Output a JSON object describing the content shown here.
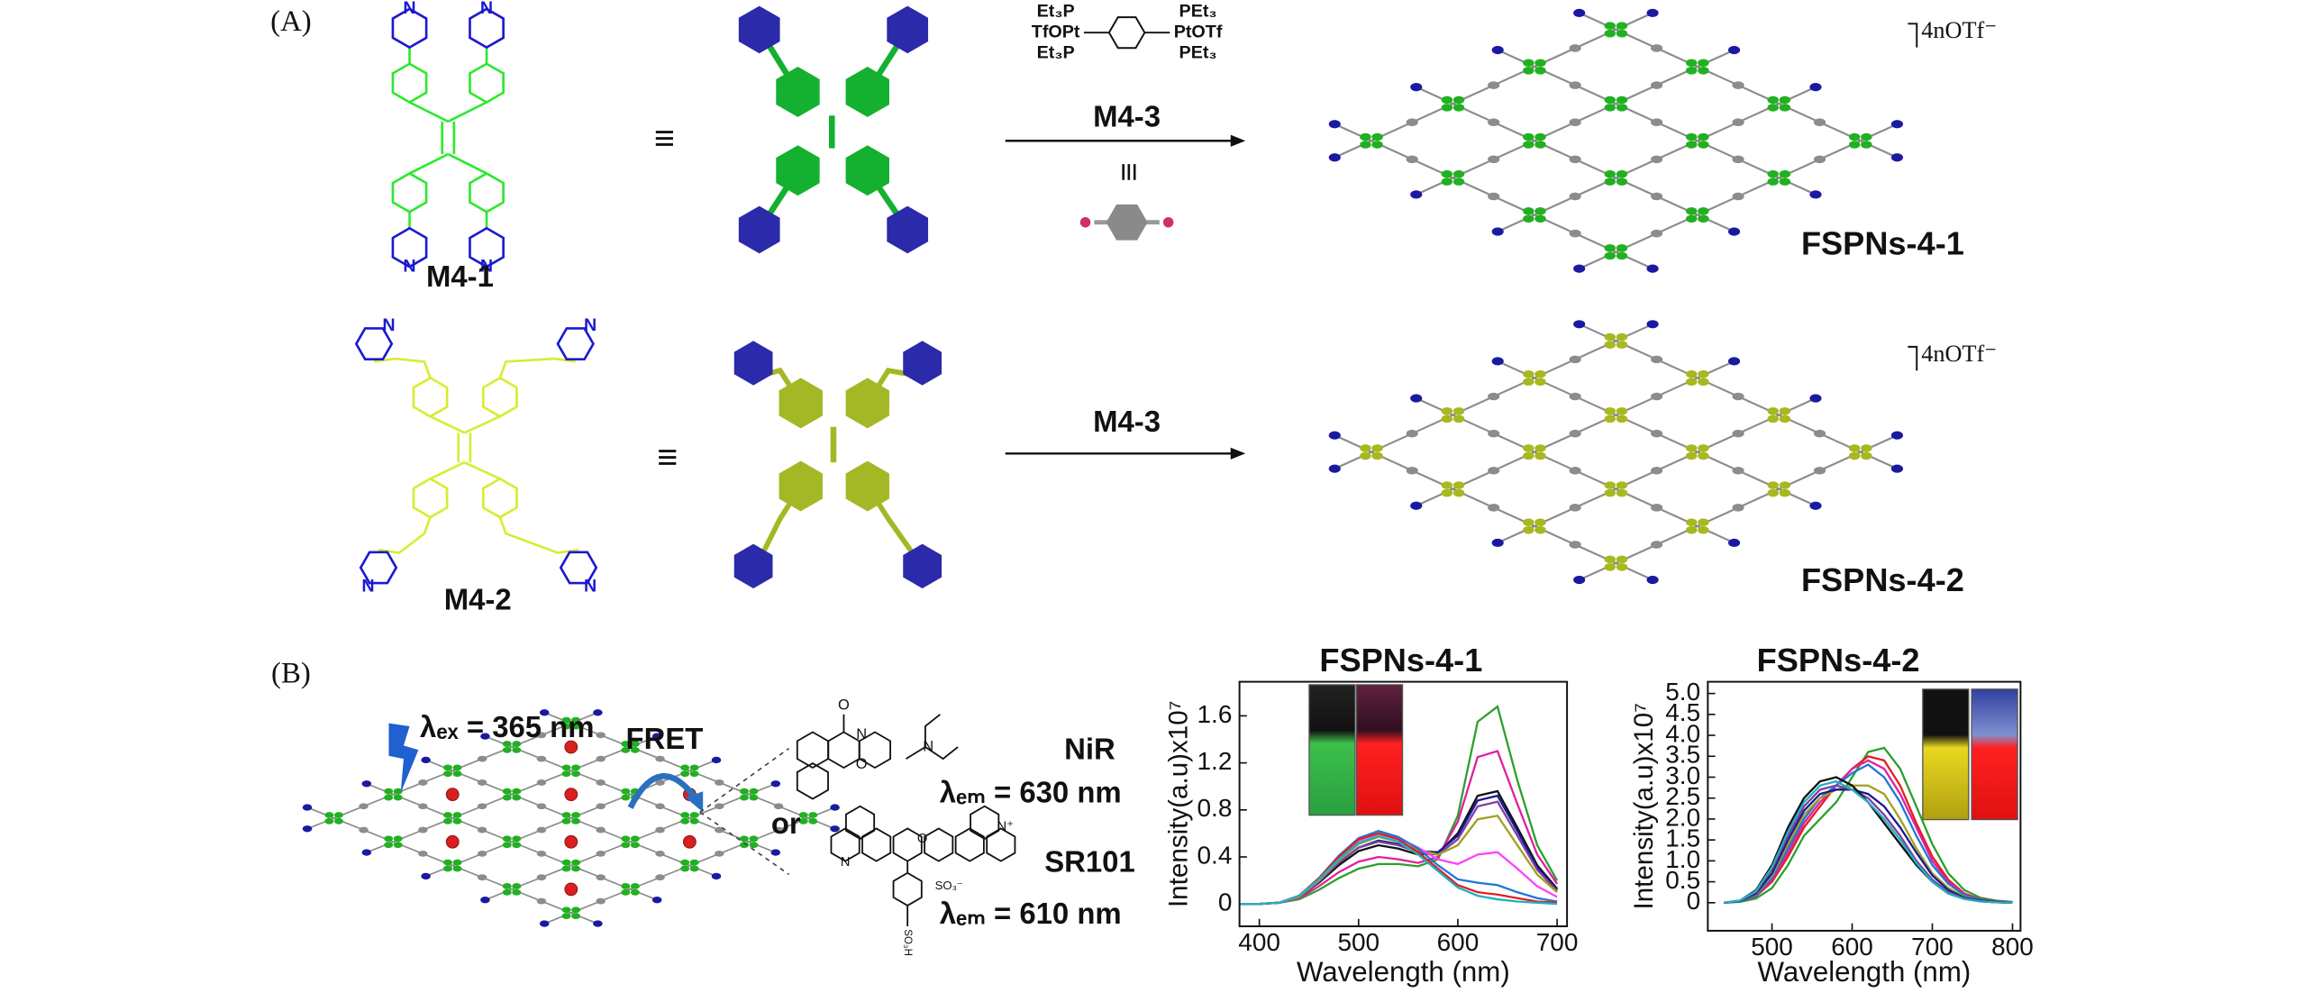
{
  "panel_a": {
    "label": "(A)",
    "molecule_1": {
      "label": "M4-1",
      "atoms": [
        "N",
        "N",
        "N",
        "N"
      ]
    },
    "molecule_2": {
      "label": "M4-2",
      "atoms": [
        "N",
        "N",
        "N",
        "N"
      ]
    },
    "equivalence": [
      "≡",
      "≡"
    ],
    "reagent": {
      "atoms": [
        "Et₃P",
        "TfOPt",
        "Et₃P",
        "PEt₃",
        "PtOTf",
        "PEt₃"
      ],
      "label": "M4-3",
      "equivalent": "≡"
    },
    "step_2": {
      "label": "M4-3"
    },
    "product_1": {
      "label": "FSPNs-4-1",
      "counterion": "4nOTf⁻"
    },
    "product_2": {
      "label": "FSPNs-4-2",
      "counterion": "4nOTf⁻"
    }
  },
  "panel_b": {
    "label": "(B)",
    "excitation": "λₑₓ = 365 nm",
    "transfer": "FRET",
    "dye_1": {
      "name": "NiR",
      "emission": "λₑₘ = 630 nm",
      "atoms": [
        "O",
        "N",
        "O",
        "N"
      ]
    },
    "or": "or",
    "dye_2": {
      "name": "SR101",
      "emission": "λₑₘ = 610 nm",
      "atoms": [
        "N",
        "N⁺",
        "O",
        "SO₃⁻",
        "SO₃H"
      ]
    }
  },
  "chart_data": [
    {
      "type": "line",
      "title": "FSPNs-4-1",
      "x_label": "Wavelength (nm)",
      "y_label": "Intensity(a.u)x10⁷",
      "x": [
        380,
        400,
        420,
        440,
        460,
        480,
        500,
        520,
        540,
        560,
        580,
        600,
        620,
        640,
        660,
        680,
        700
      ],
      "xlim": [
        380,
        710
      ],
      "ylim": [
        -0.19,
        1.89
      ],
      "xticks": [
        400,
        500,
        600,
        700
      ],
      "yticks": [
        0,
        0.4,
        0.8,
        1.2,
        1.6
      ],
      "series": [
        {
          "color": "#2ca02c",
          "values": [
            0,
            0,
            0.01,
            0.04,
            0.12,
            0.22,
            0.3,
            0.34,
            0.34,
            0.32,
            0.38,
            0.75,
            1.55,
            1.68,
            1.05,
            0.5,
            0.2
          ]
        },
        {
          "color": "#e020a0",
          "values": [
            0,
            0,
            0.01,
            0.05,
            0.15,
            0.27,
            0.36,
            0.4,
            0.38,
            0.35,
            0.4,
            0.7,
            1.25,
            1.3,
            0.85,
            0.42,
            0.17
          ]
        },
        {
          "color": "#111111",
          "values": [
            0,
            0,
            0.01,
            0.06,
            0.18,
            0.33,
            0.45,
            0.5,
            0.47,
            0.42,
            0.43,
            0.6,
            0.92,
            0.96,
            0.65,
            0.33,
            0.13
          ]
        },
        {
          "color": "#1a1a90",
          "values": [
            0,
            0,
            0.01,
            0.06,
            0.19,
            0.35,
            0.48,
            0.54,
            0.51,
            0.45,
            0.44,
            0.58,
            0.88,
            0.92,
            0.62,
            0.31,
            0.12
          ]
        },
        {
          "color": "#8040a0",
          "values": [
            0,
            0,
            0.01,
            0.06,
            0.19,
            0.35,
            0.48,
            0.53,
            0.5,
            0.44,
            0.42,
            0.55,
            0.83,
            0.87,
            0.58,
            0.29,
            0.11
          ]
        },
        {
          "color": "#a0a020",
          "values": [
            0,
            0,
            0.01,
            0.06,
            0.2,
            0.37,
            0.51,
            0.57,
            0.53,
            0.46,
            0.42,
            0.5,
            0.72,
            0.75,
            0.5,
            0.25,
            0.1
          ]
        },
        {
          "color": "#ff40ff",
          "values": [
            0,
            0,
            0.01,
            0.07,
            0.21,
            0.39,
            0.54,
            0.6,
            0.56,
            0.48,
            0.38,
            0.34,
            0.42,
            0.44,
            0.3,
            0.15,
            0.06
          ]
        },
        {
          "color": "#1f77d4",
          "values": [
            0,
            0,
            0.01,
            0.07,
            0.22,
            0.41,
            0.56,
            0.62,
            0.57,
            0.47,
            0.33,
            0.21,
            0.18,
            0.16,
            0.1,
            0.05,
            0.02
          ]
        },
        {
          "color": "#e02020",
          "values": [
            0,
            0,
            0.01,
            0.07,
            0.22,
            0.4,
            0.55,
            0.6,
            0.55,
            0.44,
            0.3,
            0.16,
            0.1,
            0.08,
            0.05,
            0.02,
            0.01
          ]
        },
        {
          "color": "#20b0c0",
          "values": [
            0,
            0,
            0.01,
            0.07,
            0.21,
            0.38,
            0.52,
            0.58,
            0.53,
            0.42,
            0.28,
            0.14,
            0.07,
            0.04,
            0.02,
            0.01,
            0
          ]
        }
      ]
    },
    {
      "type": "line",
      "title": "FSPNs-4-2",
      "x_label": "Wavelength (nm)",
      "y_label": "Intensity(a.u)x10⁷",
      "x": [
        440,
        460,
        480,
        500,
        520,
        540,
        560,
        580,
        600,
        620,
        640,
        660,
        680,
        700,
        720,
        740,
        760,
        780,
        800
      ],
      "xlim": [
        420,
        810
      ],
      "ylim": [
        -0.67,
        5.28
      ],
      "xticks": [
        500,
        600,
        700,
        800
      ],
      "yticks": [
        0,
        0.5,
        {
          "value": 1,
          "label": "1.0"
        },
        1.5,
        {
          "value": 2,
          "label": "2.0"
        },
        2.5,
        {
          "value": 3,
          "label": "3.0"
        },
        3.5,
        {
          "value": 4,
          "label": "4.0"
        },
        4.5,
        {
          "value": 5,
          "label": "5.0"
        }
      ],
      "series": [
        {
          "color": "#2ca02c",
          "values": [
            0,
            0.02,
            0.1,
            0.35,
            0.9,
            1.6,
            2.0,
            2.4,
            3.0,
            3.6,
            3.7,
            3.2,
            2.3,
            1.4,
            0.7,
            0.3,
            0.12,
            0.05,
            0.02
          ]
        },
        {
          "color": "#e02020",
          "values": [
            0,
            0.03,
            0.15,
            0.5,
            1.1,
            1.8,
            2.3,
            2.8,
            3.2,
            3.5,
            3.4,
            2.8,
            1.9,
            1.1,
            0.55,
            0.22,
            0.08,
            0.03,
            0.01
          ]
        },
        {
          "color": "#e020a0",
          "values": [
            0,
            0.03,
            0.16,
            0.55,
            1.2,
            1.9,
            2.4,
            2.8,
            3.2,
            3.4,
            3.2,
            2.6,
            1.8,
            1.0,
            0.5,
            0.2,
            0.08,
            0.03,
            0.01
          ]
        },
        {
          "color": "#1f77d4",
          "values": [
            0,
            0.03,
            0.17,
            0.6,
            1.3,
            2.0,
            2.5,
            2.8,
            3.1,
            3.3,
            3.0,
            2.4,
            1.6,
            0.9,
            0.45,
            0.18,
            0.07,
            0.02,
            0.01
          ]
        },
        {
          "color": "#a0a020",
          "values": [
            0,
            0.04,
            0.2,
            0.65,
            1.4,
            2.1,
            2.5,
            2.7,
            2.8,
            2.8,
            2.6,
            2.0,
            1.3,
            0.7,
            0.35,
            0.14,
            0.05,
            0.02,
            0
          ]
        },
        {
          "color": "#1a1a90",
          "values": [
            0,
            0.04,
            0.22,
            0.7,
            1.5,
            2.2,
            2.6,
            2.7,
            2.7,
            2.6,
            2.3,
            1.8,
            1.2,
            0.65,
            0.3,
            0.12,
            0.05,
            0.02,
            0
          ]
        },
        {
          "color": "#8040a0",
          "values": [
            0,
            0.05,
            0.25,
            0.8,
            1.6,
            2.3,
            2.7,
            2.8,
            2.7,
            2.5,
            2.1,
            1.6,
            1.0,
            0.55,
            0.25,
            0.1,
            0.04,
            0.01,
            0
          ]
        },
        {
          "color": "#111111",
          "values": [
            0,
            0.05,
            0.3,
            0.9,
            1.8,
            2.5,
            2.9,
            3.0,
            2.8,
            2.4,
            1.9,
            1.4,
            0.9,
            0.5,
            0.22,
            0.09,
            0.03,
            0.01,
            0
          ]
        },
        {
          "color": "#20b0c0",
          "values": [
            0,
            0.05,
            0.28,
            0.85,
            1.7,
            2.4,
            2.8,
            2.9,
            2.7,
            2.4,
            2.0,
            1.5,
            0.95,
            0.5,
            0.22,
            0.09,
            0.03,
            0.01,
            0
          ]
        }
      ]
    }
  ]
}
